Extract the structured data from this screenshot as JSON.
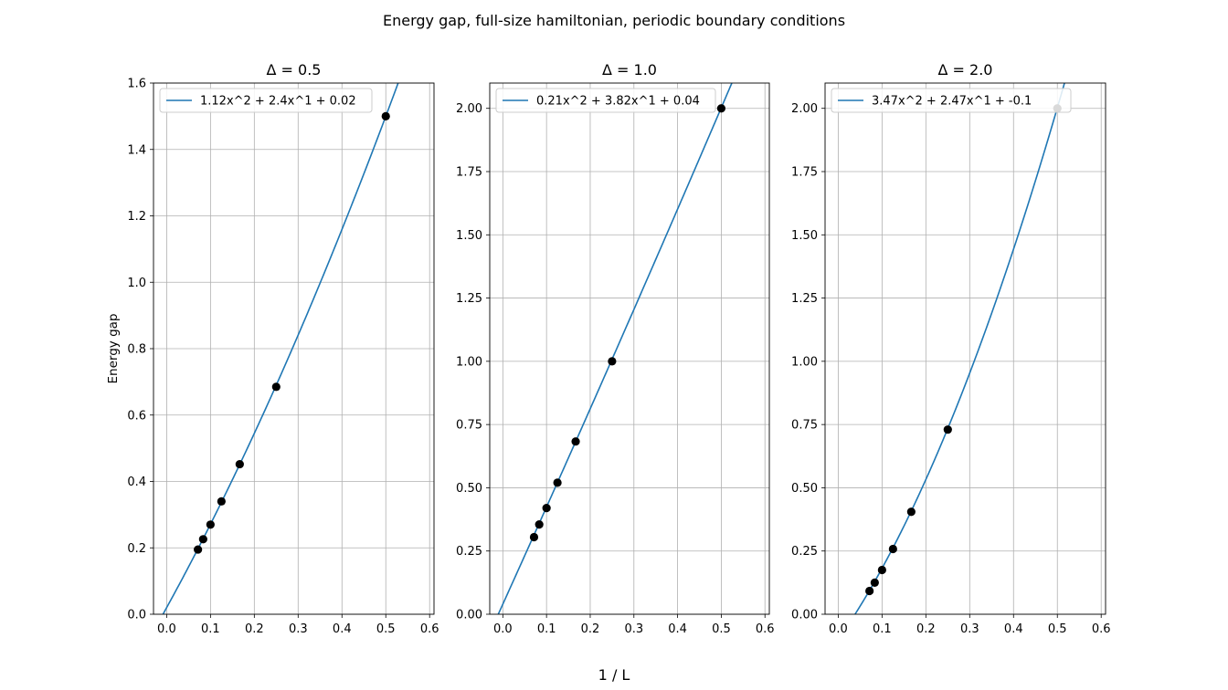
{
  "figure": {
    "suptitle": "Energy gap, full-size hamiltonian, periodic boundary conditions",
    "supxlabel": "1 / L",
    "ylabel": "Energy gap"
  },
  "colors": {
    "fit_line": "#1f77b4",
    "points": "#000000",
    "grid": "#b0b0b0"
  },
  "chart_data": [
    {
      "type": "scatter",
      "title": "Δ = 0.5",
      "xlim": [
        -0.03,
        0.61
      ],
      "ylim": [
        0,
        1.6
      ],
      "xticks": [
        "0.0",
        "0.1",
        "0.2",
        "0.3",
        "0.4",
        "0.5",
        "0.6"
      ],
      "yticks": [
        "0.0",
        "0.2",
        "0.4",
        "0.6",
        "0.8",
        "1.0",
        "1.2",
        "1.4",
        "1.6"
      ],
      "grid": true,
      "legend_position": "upper-left",
      "fit": {
        "label": "1.12x^2 + 2.4x^1 + 0.02",
        "coefficients": [
          1.12,
          2.4,
          0.02
        ]
      },
      "points": {
        "x": [
          0.0714,
          0.0833,
          0.1,
          0.125,
          0.1667,
          0.25,
          0.5
        ],
        "y": [
          0.195,
          0.226,
          0.27,
          0.34,
          0.452,
          0.685,
          1.5
        ]
      }
    },
    {
      "type": "scatter",
      "title": "Δ = 1.0",
      "xlim": [
        -0.03,
        0.61
      ],
      "ylim": [
        0,
        2.1
      ],
      "xticks": [
        "0.0",
        "0.1",
        "0.2",
        "0.3",
        "0.4",
        "0.5",
        "0.6"
      ],
      "yticks": [
        "0.00",
        "0.25",
        "0.50",
        "0.75",
        "1.00",
        "1.25",
        "1.50",
        "1.75",
        "2.00"
      ],
      "grid": true,
      "legend_position": "upper-left",
      "fit": {
        "label": "0.21x^2 + 3.82x^1 + 0.04",
        "coefficients": [
          0.21,
          3.82,
          0.04
        ]
      },
      "points": {
        "x": [
          0.0714,
          0.0833,
          0.1,
          0.125,
          0.1667,
          0.25,
          0.5
        ],
        "y": [
          0.305,
          0.355,
          0.42,
          0.52,
          0.683,
          1.0,
          2.0
        ]
      }
    },
    {
      "type": "scatter",
      "title": "Δ = 2.0",
      "xlim": [
        -0.03,
        0.61
      ],
      "ylim": [
        0,
        2.1
      ],
      "xticks": [
        "0.0",
        "0.1",
        "0.2",
        "0.3",
        "0.4",
        "0.5",
        "0.6"
      ],
      "yticks": [
        "0.00",
        "0.25",
        "0.50",
        "0.75",
        "1.00",
        "1.25",
        "1.50",
        "1.75",
        "2.00"
      ],
      "grid": true,
      "legend_position": "upper-left",
      "fit": {
        "label": "3.47x^2 + 2.47x^1 + -0.1",
        "coefficients": [
          3.47,
          2.47,
          -0.1
        ]
      },
      "points": {
        "x": [
          0.0714,
          0.0833,
          0.1,
          0.125,
          0.1667,
          0.25,
          0.5
        ],
        "y": [
          0.092,
          0.125,
          0.175,
          0.258,
          0.405,
          0.73,
          2.0
        ]
      }
    }
  ]
}
